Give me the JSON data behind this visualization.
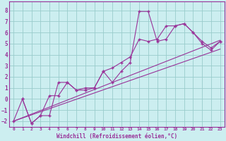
{
  "xlabel": "Windchill (Refroidissement éolien,°C)",
  "bg_color": "#cceef0",
  "grid_color": "#99cccc",
  "line_color": "#993399",
  "xlim": [
    -0.5,
    23.5
  ],
  "ylim": [
    -2.5,
    8.8
  ],
  "xticks": [
    0,
    1,
    2,
    3,
    4,
    5,
    6,
    7,
    8,
    9,
    10,
    11,
    12,
    13,
    14,
    15,
    16,
    17,
    18,
    19,
    20,
    21,
    22,
    23
  ],
  "yticks": [
    -2,
    -1,
    0,
    1,
    2,
    3,
    4,
    5,
    6,
    7,
    8
  ],
  "line1_x": [
    0,
    1,
    2,
    3,
    4,
    5,
    6,
    7,
    8,
    9,
    10,
    11,
    12,
    13,
    14,
    15,
    16,
    17,
    18,
    19,
    20,
    21,
    22,
    23
  ],
  "line1_y": [
    -2.0,
    0.0,
    -2.2,
    -1.5,
    -1.5,
    1.5,
    1.5,
    0.8,
    1.0,
    1.0,
    2.5,
    1.5,
    2.5,
    3.3,
    7.9,
    7.9,
    5.2,
    5.4,
    6.6,
    6.8,
    6.0,
    5.2,
    4.6,
    5.2
  ],
  "line2_x": [
    1,
    2,
    3,
    4,
    5,
    6,
    7,
    8,
    9,
    10,
    11,
    12,
    13,
    14,
    15,
    16,
    17,
    18,
    19,
    20,
    21,
    22,
    23
  ],
  "line2_y": [
    0.0,
    -2.2,
    -1.5,
    0.3,
    0.3,
    1.5,
    0.8,
    0.8,
    1.0,
    2.5,
    2.8,
    3.3,
    3.8,
    5.4,
    5.2,
    5.4,
    6.6,
    6.6,
    6.8,
    6.0,
    5.0,
    4.4,
    5.2
  ],
  "line3_x": [
    0,
    23
  ],
  "line3_y": [
    -2.0,
    5.3
  ],
  "line4_x": [
    0,
    23
  ],
  "line4_y": [
    -2.0,
    4.5
  ]
}
